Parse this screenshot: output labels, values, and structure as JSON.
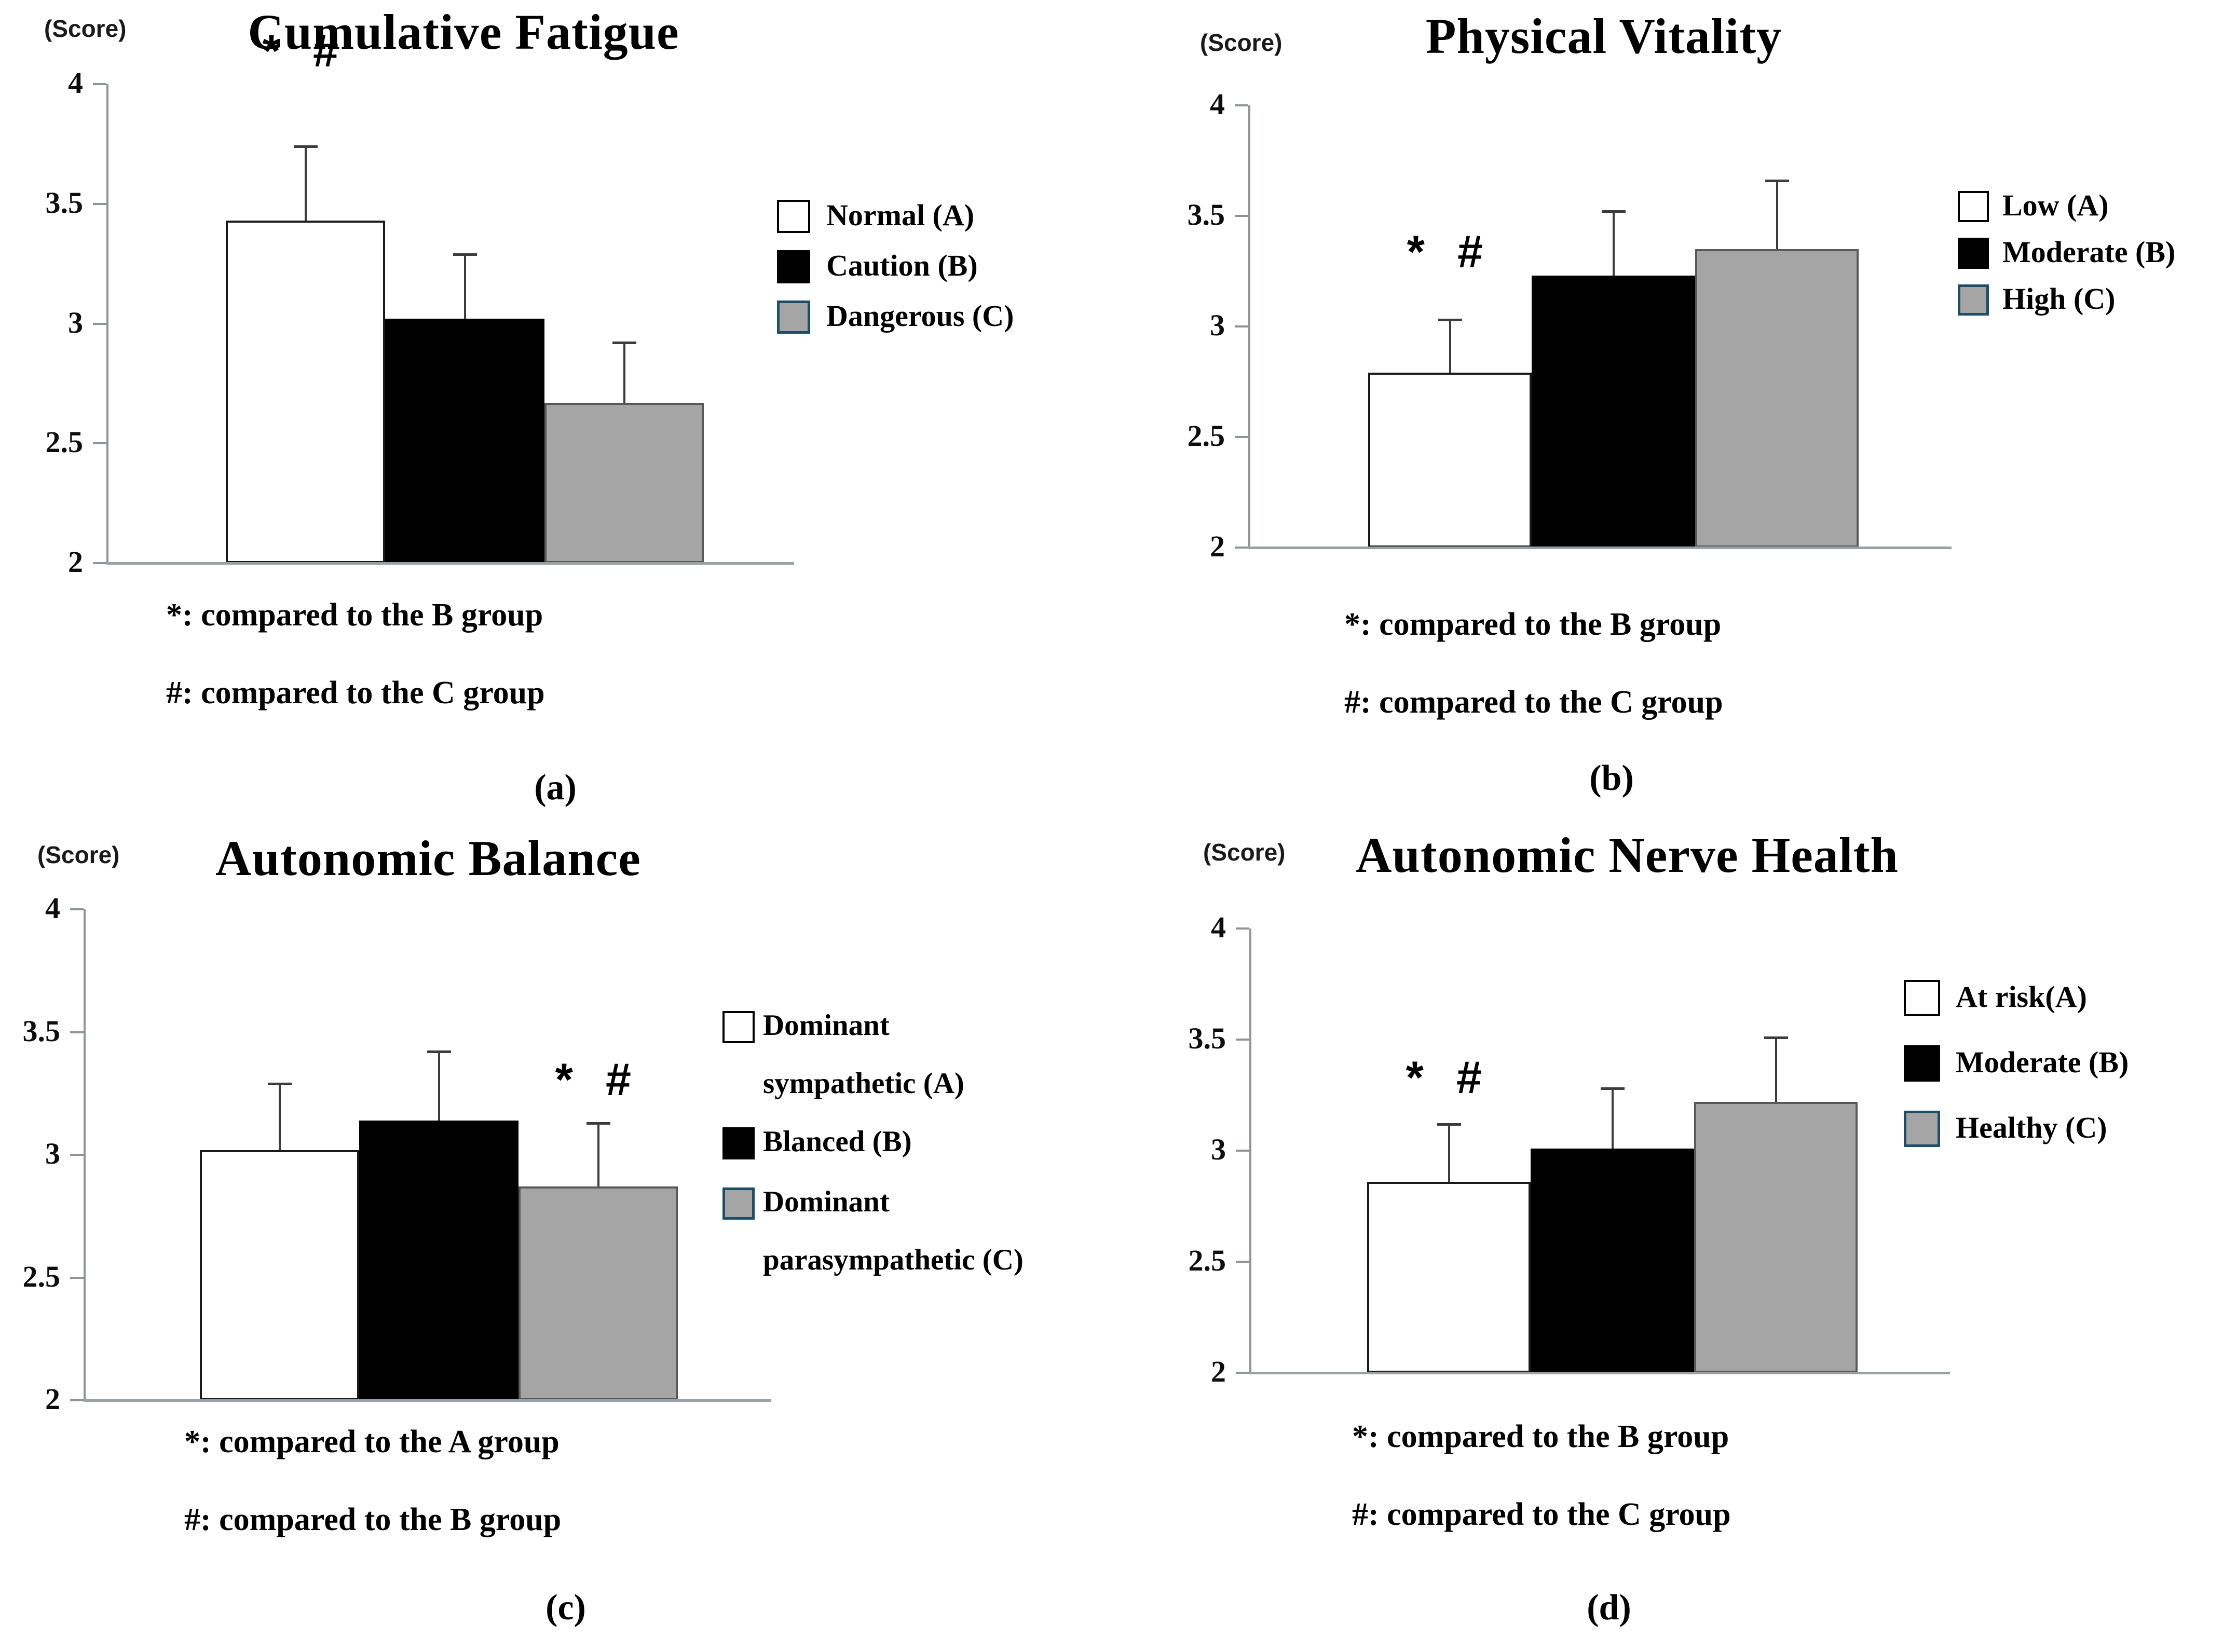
{
  "figure": {
    "background": "#ffffff",
    "colors": {
      "axis": "#8f9498",
      "baseline": "#9aa0a3",
      "error_bar": "#3c3c3c",
      "bar_white": "#ffffff",
      "bar_black": "#000000",
      "bar_gray": "#a5a5a5",
      "gray_swatch_border": "#1c4f66",
      "text": "#000000"
    }
  },
  "chart_data": [
    {
      "type": "bar",
      "panel_label": "(a)",
      "title": "Cumulative Fatigue",
      "ylabel": "(Score)",
      "xlabel": "",
      "ylim": [
        2,
        4
      ],
      "ytick_values": [
        4,
        3.5,
        3,
        2.5,
        2
      ],
      "yticks": [
        "4",
        "3.5",
        "3",
        "2.5",
        "2"
      ],
      "grid": "off",
      "legend_position": "right",
      "categories": [
        "Normal (A)",
        "Caution (B)",
        "Dangerous (C)"
      ],
      "values": [
        3.43,
        3.02,
        2.67
      ],
      "error_tops": [
        3.74,
        3.29,
        2.92
      ],
      "bar_fills": [
        "#ffffff",
        "#000000",
        "#a5a5a5"
      ],
      "bar_borders": [
        "#1a1a1a",
        "#000000",
        "#595959"
      ],
      "legend": {
        "items": [
          {
            "label_lines": [
              "Normal (A)"
            ],
            "fill": "#ffffff",
            "border": "#000000"
          },
          {
            "label_lines": [
              "Caution (B)"
            ],
            "fill": "#000000",
            "border": "#000000"
          },
          {
            "label_lines": [
              "Dangerous (C)"
            ],
            "fill": "#a5a5a5",
            "border": "#1c4f66"
          }
        ]
      },
      "annotation": {
        "text": "* #",
        "bar_index": 0,
        "score": 4.13
      },
      "footnotes": [
        "*: compared to the B group",
        "#: compared to the C group"
      ]
    },
    {
      "type": "bar",
      "panel_label": "(b)",
      "title": "Physical Vitality",
      "ylabel": "(Score)",
      "xlabel": "",
      "ylim": [
        2,
        4
      ],
      "ytick_values": [
        4,
        3.5,
        3,
        2.5,
        2
      ],
      "yticks": [
        "4",
        "3.5",
        "3",
        "2.5",
        "2"
      ],
      "grid": "off",
      "legend_position": "right",
      "categories": [
        "Low (A)",
        "Moderate (B)",
        "High (C)"
      ],
      "values": [
        2.79,
        3.23,
        3.35
      ],
      "error_tops": [
        3.03,
        3.52,
        3.66
      ],
      "bar_fills": [
        "#ffffff",
        "#000000",
        "#a5a5a5"
      ],
      "bar_borders": [
        "#1a1a1a",
        "#000000",
        "#595959"
      ],
      "legend": {
        "items": [
          {
            "label_lines": [
              "Low (A)"
            ],
            "fill": "#ffffff",
            "border": "#000000"
          },
          {
            "label_lines": [
              "Moderate (B)"
            ],
            "fill": "#000000",
            "border": "#000000"
          },
          {
            "label_lines": [
              "High (C)"
            ],
            "fill": "#a5a5a5",
            "border": "#1c4f66"
          }
        ]
      },
      "annotation": {
        "text": "* #",
        "bar_index": 0,
        "score": 3.33
      },
      "footnotes": [
        "*: compared to the B group",
        "#: compared to the C group"
      ]
    },
    {
      "type": "bar",
      "panel_label": "(c)",
      "title": "Autonomic Balance",
      "ylabel": "(Score)",
      "xlabel": "",
      "ylim": [
        2,
        4
      ],
      "ytick_values": [
        4,
        3.5,
        3,
        2.5,
        2
      ],
      "yticks": [
        "4",
        "3.5",
        "3",
        "2.5",
        "2"
      ],
      "grid": "off",
      "legend_position": "right",
      "categories": [
        "Dominant sympathetic (A)",
        "Blanced (B)",
        "Dominant parasympathetic (C)"
      ],
      "values": [
        3.02,
        3.14,
        2.87
      ],
      "error_tops": [
        3.29,
        3.42,
        3.13
      ],
      "bar_fills": [
        "#ffffff",
        "#000000",
        "#a5a5a5"
      ],
      "bar_borders": [
        "#1a1a1a",
        "#000000",
        "#595959"
      ],
      "legend": {
        "items": [
          {
            "label_lines": [
              "Dominant",
              "sympathetic (A)"
            ],
            "fill": "#ffffff",
            "border": "#000000"
          },
          {
            "label_lines": [
              "Blanced (B)"
            ],
            "fill": "#000000",
            "border": "#000000"
          },
          {
            "label_lines": [
              "Dominant",
              "parasympathetic (C)"
            ],
            "fill": "#a5a5a5",
            "border": "#1c4f66"
          }
        ]
      },
      "annotation": {
        "text": "* #",
        "bar_index": 2,
        "score": 3.3
      },
      "footnotes": [
        "*: compared to the A group",
        "#: compared to the B group"
      ]
    },
    {
      "type": "bar",
      "panel_label": "(d)",
      "title": "Autonomic Nerve Health",
      "ylabel": "(Score)",
      "xlabel": "",
      "ylim": [
        2,
        4
      ],
      "ytick_values": [
        4,
        3.5,
        3,
        2.5,
        2
      ],
      "yticks": [
        "4",
        "3.5",
        "3",
        "2.5",
        "2"
      ],
      "grid": "off",
      "legend_position": "right",
      "categories": [
        "At risk(A)",
        "Moderate (B)",
        "Healthy (C)"
      ],
      "values": [
        2.86,
        3.01,
        3.22
      ],
      "error_tops": [
        3.12,
        3.28,
        3.51
      ],
      "bar_fills": [
        "#ffffff",
        "#000000",
        "#a5a5a5"
      ],
      "bar_borders": [
        "#1a1a1a",
        "#000000",
        "#595959"
      ],
      "legend": {
        "items": [
          {
            "label_lines": [
              "At risk(A)"
            ],
            "fill": "#ffffff",
            "border": "#000000"
          },
          {
            "label_lines": [
              "Moderate (B)"
            ],
            "fill": "#000000",
            "border": "#000000"
          },
          {
            "label_lines": [
              "Healthy (C)"
            ],
            "fill": "#a5a5a5",
            "border": "#1c4f66"
          }
        ]
      },
      "annotation": {
        "text": "* #",
        "bar_index": 0,
        "score": 3.32
      },
      "footnotes": [
        "*: compared to the B group",
        "#: compared to the C group"
      ]
    }
  ]
}
